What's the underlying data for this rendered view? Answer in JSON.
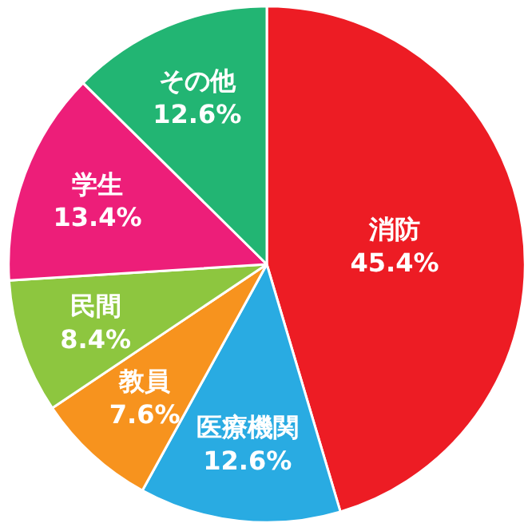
{
  "chart_data": {
    "type": "pie",
    "categories": [
      "消防",
      "医療機関",
      "教員",
      "民間",
      "学生",
      "その他"
    ],
    "values": [
      45.4,
      12.6,
      7.6,
      8.4,
      13.4,
      12.6
    ],
    "value_labels": [
      "45.4%",
      "12.6%",
      "7.6%",
      "8.4%",
      "13.4%",
      "12.6%"
    ],
    "colors": [
      "#ed1c24",
      "#29abe2",
      "#f7931e",
      "#8dc63f",
      "#ed1e79",
      "#22b573"
    ]
  }
}
